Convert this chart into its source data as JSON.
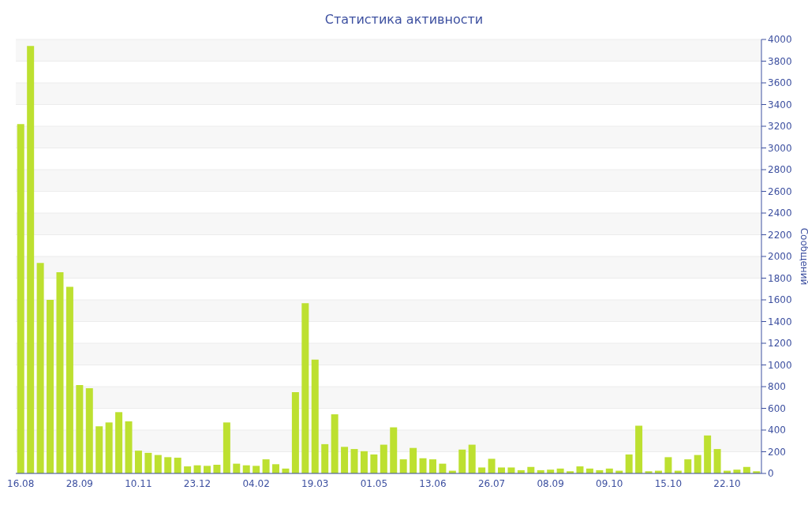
{
  "chart_data": {
    "type": "bar",
    "title": "Статистика активности",
    "ylabel": "Сообщений",
    "categories": [
      "16.08",
      null,
      null,
      null,
      null,
      null,
      "28.09",
      null,
      null,
      null,
      null,
      null,
      "10.11",
      null,
      null,
      null,
      null,
      null,
      "23.12",
      null,
      null,
      null,
      null,
      null,
      "04.02",
      null,
      null,
      null,
      null,
      null,
      "19.03",
      null,
      null,
      null,
      null,
      null,
      "01.05",
      null,
      null,
      null,
      null,
      null,
      "13.06",
      null,
      null,
      null,
      null,
      null,
      "26.07",
      null,
      null,
      null,
      null,
      null,
      "08.09",
      null,
      null,
      null,
      null,
      null,
      "09.10",
      null,
      null,
      null,
      null,
      null,
      "15.10",
      null,
      null,
      null,
      null,
      null,
      "22.10",
      null,
      null,
      null
    ],
    "values": [
      3220,
      3940,
      1940,
      1600,
      1855,
      1720,
      815,
      785,
      435,
      470,
      565,
      480,
      210,
      190,
      170,
      150,
      145,
      65,
      75,
      70,
      80,
      470,
      90,
      75,
      70,
      130,
      85,
      45,
      750,
      1570,
      1050,
      270,
      545,
      245,
      225,
      205,
      175,
      265,
      425,
      130,
      235,
      140,
      130,
      90,
      25,
      220,
      265,
      55,
      135,
      55,
      55,
      30,
      60,
      30,
      35,
      45,
      20,
      65,
      45,
      30,
      45,
      25,
      175,
      440,
      20,
      25,
      150,
      25,
      130,
      170,
      350,
      225,
      25,
      35,
      60,
      20
    ],
    "color": "#bde030",
    "ylim": [
      0,
      4000
    ],
    "yticks": [
      0,
      200,
      400,
      600,
      800,
      1000,
      1200,
      1400,
      1600,
      1800,
      2000,
      2200,
      2400,
      2600,
      2800,
      3000,
      3200,
      3400,
      3600,
      3800,
      4000
    ],
    "grid": "y"
  }
}
